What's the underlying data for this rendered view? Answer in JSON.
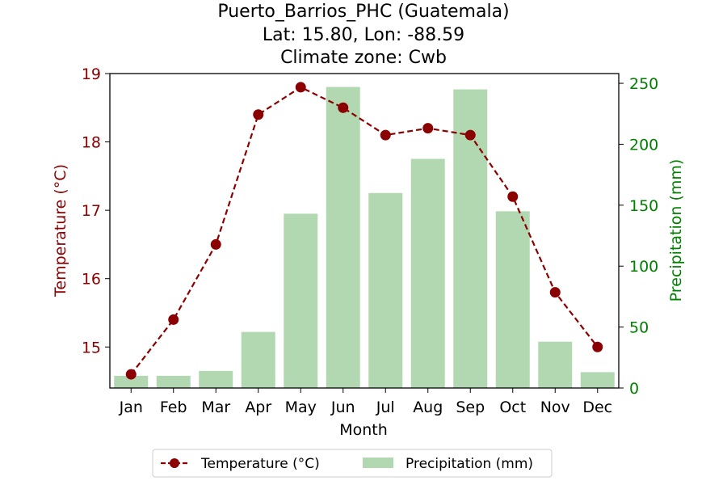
{
  "chart_data": {
    "type": "bar+line",
    "title_lines": [
      "Puerto_Barrios_PHC (Guatemala)",
      "Lat: 15.80, Lon: -88.59",
      "Climate zone: Cwb"
    ],
    "xlabel": "Month",
    "ylabel_left": "Temperature (°C)",
    "ylabel_right": "Precipitation (mm)",
    "categories": [
      "Jan",
      "Feb",
      "Mar",
      "Apr",
      "May",
      "Jun",
      "Jul",
      "Aug",
      "Sep",
      "Oct",
      "Nov",
      "Dec"
    ],
    "temperature": {
      "name": "Temperature (°C)",
      "values": [
        14.6,
        15.4,
        16.5,
        18.4,
        18.8,
        18.5,
        18.1,
        18.2,
        18.1,
        17.2,
        15.8,
        15.0
      ],
      "color": "#8b0000"
    },
    "precipitation": {
      "name": "Precipitation (mm)",
      "values": [
        10,
        10,
        14,
        46,
        143,
        247,
        160,
        188,
        245,
        145,
        38,
        13
      ],
      "color": "#b2d8b2"
    },
    "ylim_left": [
      14.4,
      19.0
    ],
    "yticks_left": [
      15,
      16,
      17,
      18,
      19
    ],
    "ylim_right": [
      0,
      258
    ],
    "yticks_right": [
      0,
      50,
      100,
      150,
      200,
      250
    ],
    "left_axis_color": "#8b0000",
    "right_axis_color": "#008000",
    "grid": false,
    "legend_position": "bottom-center"
  }
}
